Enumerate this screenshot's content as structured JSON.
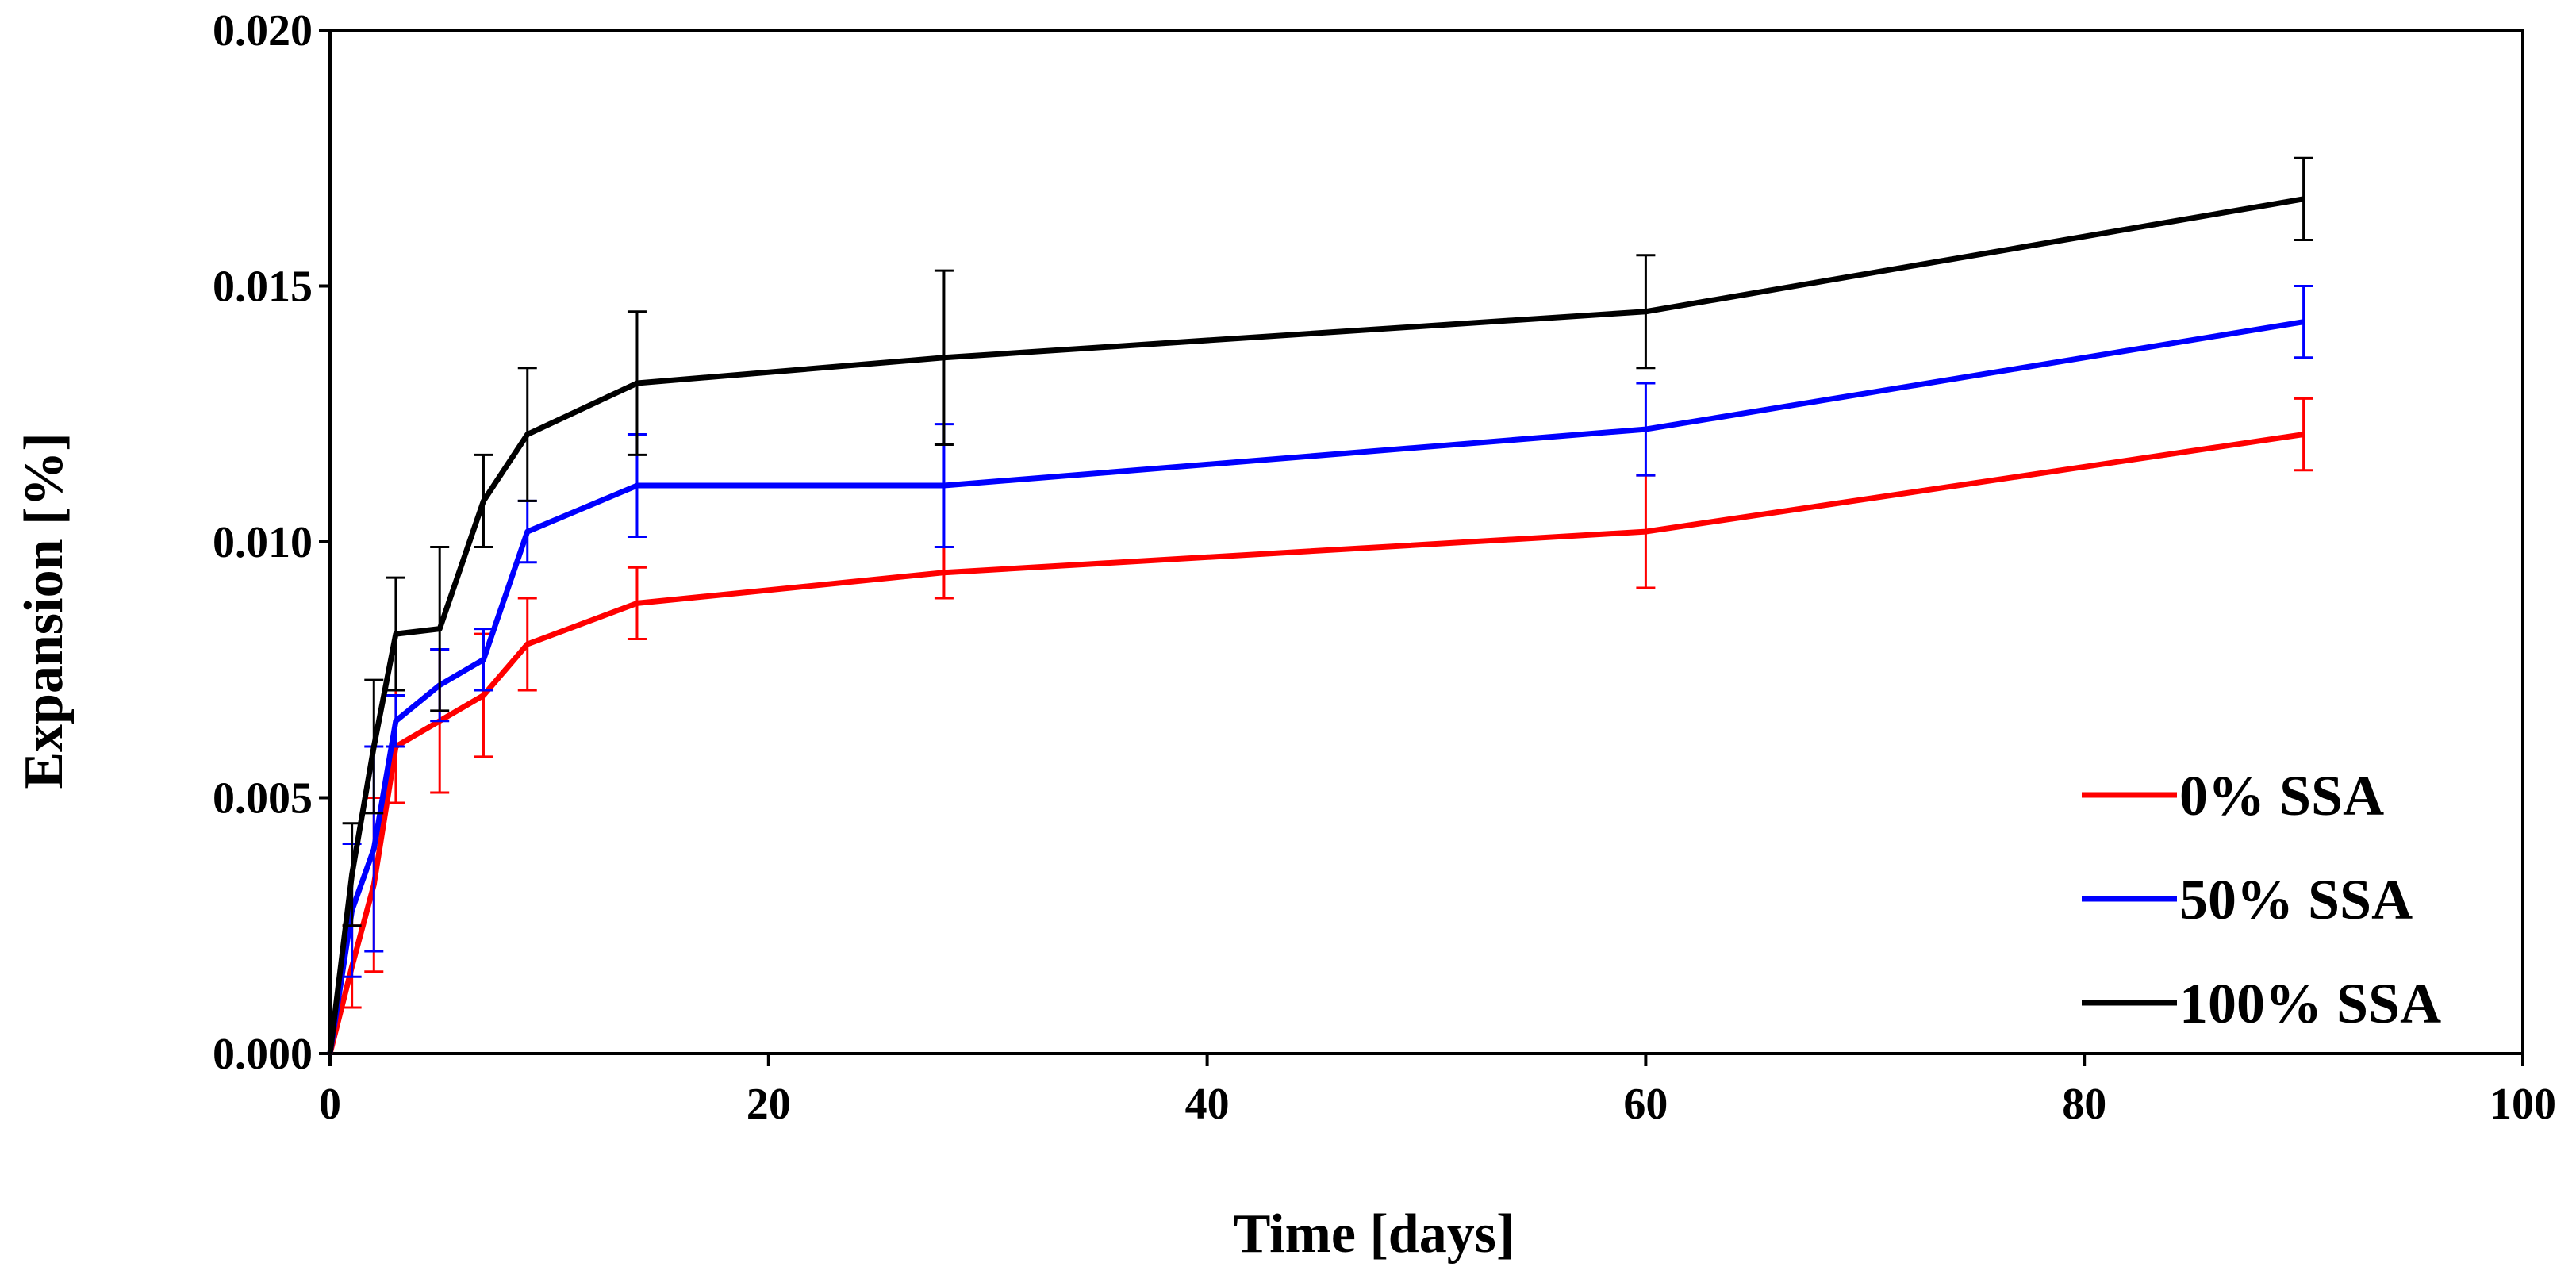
{
  "chart_data": {
    "type": "line",
    "title": "",
    "xlabel": "Time [days]",
    "ylabel": "Expansion [%]",
    "xlim": [
      0,
      100
    ],
    "ylim": [
      0,
      0.02
    ],
    "xticks": [
      0,
      20,
      40,
      60,
      80,
      100
    ],
    "xtick_labels": [
      "0",
      "20",
      "40",
      "60",
      "80",
      "100"
    ],
    "yticks": [
      0,
      0.005,
      0.01,
      0.015,
      0.02
    ],
    "ytick_labels": [
      "0.000",
      "0.005",
      "0.010",
      "0.015",
      "0.020"
    ],
    "grid": false,
    "legend_position": "bottom-right",
    "x": [
      0,
      1,
      2,
      3,
      5,
      7,
      9,
      14,
      28,
      60,
      90
    ],
    "series": [
      {
        "name": "0% SSA",
        "color": "#ff0000",
        "values": [
          0,
          0.0017,
          0.0033,
          0.006,
          0.0065,
          0.007,
          0.008,
          0.0088,
          0.0094,
          0.0102,
          0.0121
        ],
        "errors": [
          0,
          0.0008,
          0.0017,
          0.0011,
          0.0014,
          0.0012,
          0.0009,
          0.0007,
          0.0005,
          0.0011,
          0.0007
        ]
      },
      {
        "name": "50% SSA",
        "color": "#0000ff",
        "values": [
          0,
          0.0028,
          0.004,
          0.0065,
          0.0072,
          0.0077,
          0.0102,
          0.0111,
          0.0111,
          0.0122,
          0.0143
        ],
        "errors": [
          0,
          0.0013,
          0.002,
          0.0005,
          0.0007,
          0.0006,
          0.0006,
          0.001,
          0.0012,
          0.0009,
          0.0007
        ]
      },
      {
        "name": "100% SSA",
        "color": "#000000",
        "values": [
          0,
          0.0035,
          0.006,
          0.0082,
          0.0083,
          0.0108,
          0.0121,
          0.0131,
          0.0136,
          0.0145,
          0.0167
        ],
        "errors": [
          0,
          0.001,
          0.0013,
          0.0011,
          0.0016,
          0.0009,
          0.0013,
          0.0014,
          0.0017,
          0.0011,
          0.0008
        ]
      }
    ]
  }
}
